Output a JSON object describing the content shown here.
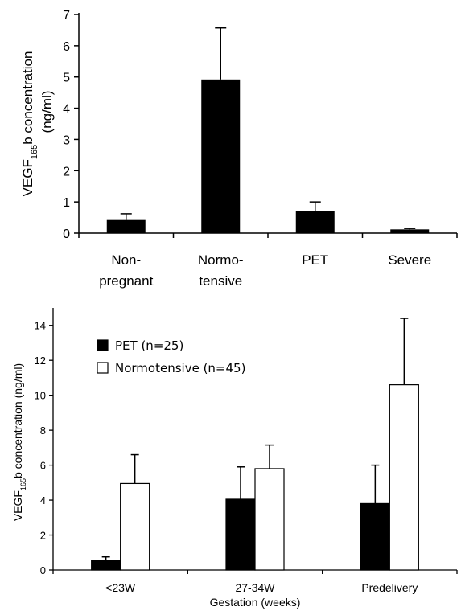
{
  "chart_data": [
    {
      "type": "bar",
      "categories": [
        [
          "Non-",
          "pregnant"
        ],
        [
          "Normo-",
          "tensive"
        ],
        [
          "PET"
        ],
        [
          "Severe"
        ]
      ],
      "values": [
        0.42,
        4.92,
        0.7,
        0.12
      ],
      "errors": [
        0.2,
        1.65,
        0.3,
        0.03
      ],
      "ylabel": {
        "main": "VEGF",
        "sub": "165",
        "rest": "b concentration",
        "line2": "(ng/ml)"
      },
      "ylim": [
        0,
        7
      ],
      "yticks": [
        "0",
        "1",
        "2",
        "3",
        "4",
        "5",
        "6",
        "7"
      ],
      "bar_color": "#000000",
      "grid": false
    },
    {
      "type": "bar",
      "categories": [
        "<23W",
        "27-34W",
        "Predelivery"
      ],
      "series": [
        {
          "name": "PET (n=25)",
          "values": [
            0.55,
            4.05,
            3.8
          ],
          "errors": [
            0.2,
            1.85,
            2.2
          ],
          "fill": "#000000"
        },
        {
          "name": "Normotensive (n=45)",
          "values": [
            4.95,
            5.8,
            10.6
          ],
          "errors": [
            1.65,
            1.35,
            3.8
          ],
          "fill": "#ffffff"
        }
      ],
      "xlabel": "Gestation (weeks)",
      "ylabel": {
        "main": "VEGF",
        "sub": "165",
        "rest": "b concentration (ng/ml)"
      },
      "ylim": [
        0,
        15
      ],
      "yticks": [
        "0",
        "2",
        "4",
        "6",
        "8",
        "10",
        "12",
        "14"
      ],
      "legend_position": "top-left",
      "grid": false
    }
  ]
}
